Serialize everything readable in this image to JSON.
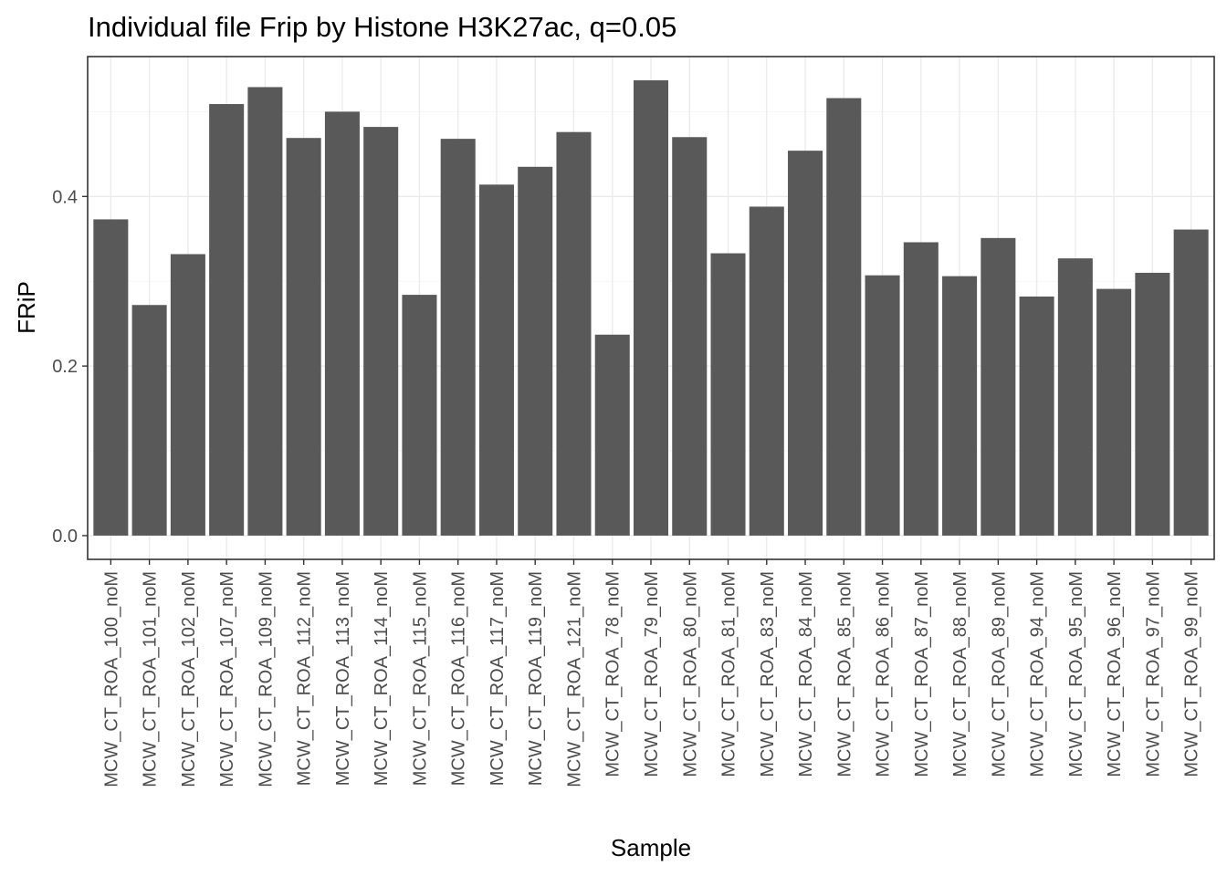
{
  "chart_data": {
    "type": "bar",
    "title": "Individual file Frip by Histone H3K27ac, q=0.05",
    "xlabel": "Sample",
    "ylabel": "FRiP",
    "ylim": [
      -0.028,
      0.565
    ],
    "yticks": [
      0.0,
      0.2,
      0.4
    ],
    "ytick_labels": [
      "0.0",
      "0.2",
      "0.4"
    ],
    "grid": true,
    "bar_color": "#595959",
    "categories": [
      "MCW_CT_ROA_100_noM",
      "MCW_CT_ROA_101_noM",
      "MCW_CT_ROA_102_noM",
      "MCW_CT_ROA_107_noM",
      "MCW_CT_ROA_109_noM",
      "MCW_CT_ROA_112_noM",
      "MCW_CT_ROA_113_noM",
      "MCW_CT_ROA_114_noM",
      "MCW_CT_ROA_115_noM",
      "MCW_CT_ROA_116_noM",
      "MCW_CT_ROA_117_noM",
      "MCW_CT_ROA_119_noM",
      "MCW_CT_ROA_121_noM",
      "MCW_CT_ROA_78_noM",
      "MCW_CT_ROA_79_noM",
      "MCW_CT_ROA_80_noM",
      "MCW_CT_ROA_81_noM",
      "MCW_CT_ROA_83_noM",
      "MCW_CT_ROA_84_noM",
      "MCW_CT_ROA_85_noM",
      "MCW_CT_ROA_86_noM",
      "MCW_CT_ROA_87_noM",
      "MCW_CT_ROA_88_noM",
      "MCW_CT_ROA_89_noM",
      "MCW_CT_ROA_94_noM",
      "MCW_CT_ROA_95_noM",
      "MCW_CT_ROA_96_noM",
      "MCW_CT_ROA_97_noM",
      "MCW_CT_ROA_99_noM"
    ],
    "values": [
      0.373,
      0.272,
      0.332,
      0.509,
      0.529,
      0.469,
      0.5,
      0.482,
      0.284,
      0.468,
      0.414,
      0.435,
      0.476,
      0.237,
      0.537,
      0.47,
      0.333,
      0.388,
      0.454,
      0.516,
      0.307,
      0.346,
      0.306,
      0.351,
      0.282,
      0.327,
      0.291,
      0.31,
      0.361
    ]
  }
}
